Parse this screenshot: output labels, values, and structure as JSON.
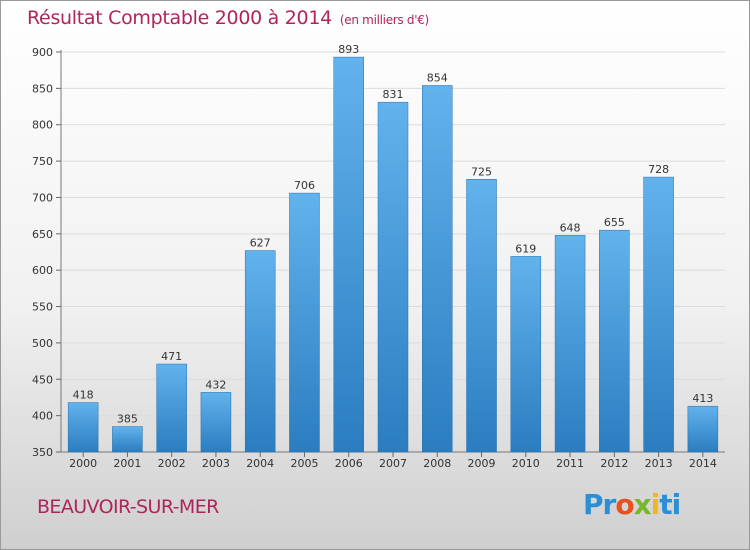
{
  "header": {
    "title": "Résultat Comptable 2000 à 2014",
    "subtitle": "(en milliers d'€)"
  },
  "footer": {
    "commune": "BEAUVOIR-SUR-MER",
    "logo_parts": [
      "Pr",
      "o",
      "x",
      "i",
      "ti"
    ]
  },
  "colors": {
    "title": "#b0245c",
    "bar_top": "#62b2ec",
    "bar_bottom": "#2a7dc0"
  },
  "chart_data": {
    "type": "bar",
    "title": "Résultat Comptable 2000 à 2014",
    "xlabel": "",
    "ylabel": "",
    "categories": [
      "2000",
      "2001",
      "2002",
      "2003",
      "2004",
      "2005",
      "2006",
      "2007",
      "2008",
      "2009",
      "2010",
      "2011",
      "2012",
      "2013",
      "2014"
    ],
    "values": [
      418,
      385,
      471,
      432,
      627,
      706,
      893,
      831,
      854,
      725,
      619,
      648,
      655,
      728,
      413
    ],
    "ylim": [
      350,
      900
    ],
    "yticks": [
      350,
      400,
      450,
      500,
      550,
      600,
      650,
      700,
      750,
      800,
      850,
      900
    ],
    "grid": true
  }
}
